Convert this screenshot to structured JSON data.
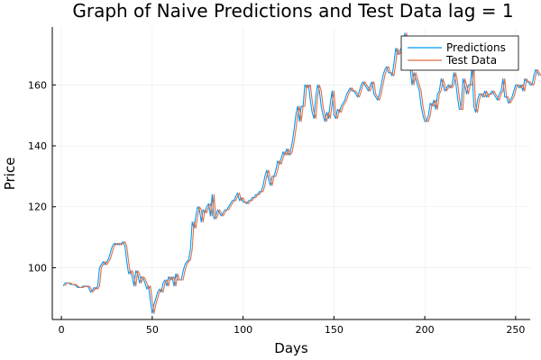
{
  "chart_data": {
    "type": "line",
    "title": "Graph of Naive Predictions and Test Data lag = 1",
    "xlabel": "Days",
    "ylabel": "Price",
    "xlim": [
      -5,
      258
    ],
    "ylim": [
      83,
      179
    ],
    "xticks": [
      0,
      50,
      100,
      150,
      200,
      250
    ],
    "yticks": [
      100,
      120,
      140,
      160
    ],
    "grid": true,
    "legend_position": "top-right",
    "series": [
      {
        "name": "Predictions",
        "color": "#009AFA",
        "x_start": 1,
        "values": [
          94,
          95,
          95,
          95,
          94.5,
          94.5,
          94.5,
          94,
          93.5,
          93.5,
          93.5,
          94,
          93.8,
          94,
          93.5,
          92,
          92.5,
          93.5,
          93,
          94,
          100,
          101,
          102,
          101,
          102,
          103,
          105,
          107,
          108,
          107.5,
          108,
          107.5,
          108,
          108.5,
          107,
          102,
          98,
          99,
          97,
          94,
          99,
          98,
          95,
          97,
          96.5,
          95,
          93,
          94,
          89,
          85,
          88,
          90,
          92,
          93,
          92,
          95,
          96,
          94,
          97,
          96,
          97,
          94,
          98,
          96,
          96,
          96,
          99,
          101,
          102,
          102.5,
          106,
          115,
          113,
          117,
          120,
          119,
          115,
          119,
          118,
          120,
          121,
          117,
          124,
          116,
          117,
          119,
          118,
          117,
          118,
          119,
          119,
          120,
          121,
          122,
          122,
          123.5,
          124.5,
          122,
          123,
          121.5,
          121.5,
          121,
          122,
          122,
          123,
          123,
          124,
          124,
          125,
          125,
          127,
          130,
          132,
          129,
          127,
          130,
          130,
          132,
          135,
          134,
          136,
          138,
          137,
          139,
          137,
          138,
          141,
          145,
          150,
          153,
          148,
          153,
          153,
          160,
          159,
          160,
          155,
          151,
          149,
          156,
          160,
          158,
          153,
          150,
          148,
          151,
          149,
          154,
          158,
          150,
          149,
          152,
          151,
          153,
          154,
          155,
          157,
          158,
          159,
          158,
          158,
          157,
          156,
          158,
          160,
          161,
          160,
          159,
          158,
          160,
          161,
          157,
          156,
          155,
          157,
          160,
          163,
          165,
          166,
          164,
          164,
          163,
          167,
          172,
          170,
          171,
          172,
          173,
          177,
          172,
          170,
          165,
          160,
          164,
          162,
          160,
          158,
          153,
          150,
          148,
          148,
          150,
          154,
          153,
          155,
          152,
          157,
          158,
          162,
          160,
          158,
          159,
          160,
          159,
          160,
          164,
          161,
          156,
          152,
          152,
          162,
          160,
          157,
          160,
          160,
          166,
          153,
          151,
          155,
          157,
          157,
          156,
          158,
          156,
          157,
          157,
          158,
          157,
          156,
          155,
          157,
          158,
          162,
          156,
          156,
          154,
          155,
          156,
          158,
          160,
          160,
          159,
          160,
          158,
          162,
          161,
          161,
          160,
          160,
          163,
          165,
          164,
          163
        ]
      },
      {
        "name": "Test Data",
        "color": "#E26F46",
        "x_start": 2,
        "values": [
          94,
          95,
          95,
          95,
          94.5,
          94.5,
          94.5,
          94,
          93.5,
          93.5,
          93.5,
          94,
          93.8,
          94,
          93.5,
          92,
          92.5,
          93.5,
          93,
          94,
          100,
          101,
          102,
          101,
          102,
          103,
          105,
          107,
          108,
          107.5,
          108,
          107.5,
          108,
          108.5,
          107,
          102,
          98,
          99,
          97,
          94,
          99,
          98,
          95,
          97,
          96.5,
          95,
          93,
          94,
          89,
          85,
          88,
          90,
          92,
          93,
          92,
          95,
          96,
          94,
          97,
          96,
          97,
          94,
          98,
          96,
          96,
          96,
          99,
          101,
          102,
          102.5,
          106,
          115,
          113,
          117,
          120,
          119,
          115,
          119,
          118,
          120,
          121,
          117,
          124,
          116,
          117,
          119,
          118,
          117,
          118,
          119,
          119,
          120,
          121,
          122,
          122,
          123.5,
          124.5,
          122,
          123,
          121.5,
          121.5,
          121,
          122,
          122,
          123,
          123,
          124,
          124,
          125,
          125,
          127,
          130,
          132,
          129,
          127,
          130,
          130,
          132,
          135,
          134,
          136,
          138,
          137,
          139,
          137,
          138,
          141,
          145,
          150,
          153,
          148,
          153,
          153,
          160,
          159,
          160,
          155,
          151,
          149,
          156,
          160,
          158,
          153,
          150,
          148,
          151,
          149,
          154,
          158,
          150,
          149,
          152,
          151,
          153,
          154,
          155,
          157,
          158,
          159,
          158,
          158,
          157,
          156,
          158,
          160,
          161,
          160,
          159,
          158,
          160,
          161,
          157,
          156,
          155,
          157,
          160,
          163,
          165,
          166,
          164,
          164,
          163,
          167,
          172,
          170,
          171,
          172,
          173,
          177,
          172,
          170,
          165,
          160,
          164,
          162,
          160,
          158,
          153,
          150,
          148,
          148,
          150,
          154,
          153,
          155,
          152,
          157,
          158,
          162,
          160,
          158,
          159,
          160,
          159,
          160,
          164,
          161,
          156,
          152,
          152,
          162,
          160,
          157,
          160,
          160,
          166,
          153,
          151,
          155,
          157,
          157,
          156,
          158,
          156,
          157,
          157,
          158,
          157,
          156,
          155,
          157,
          158,
          162,
          156,
          156,
          154,
          155,
          156,
          158,
          160,
          160,
          159,
          160,
          158,
          162,
          161,
          161,
          160,
          160,
          163,
          165,
          164,
          163
        ]
      }
    ]
  }
}
